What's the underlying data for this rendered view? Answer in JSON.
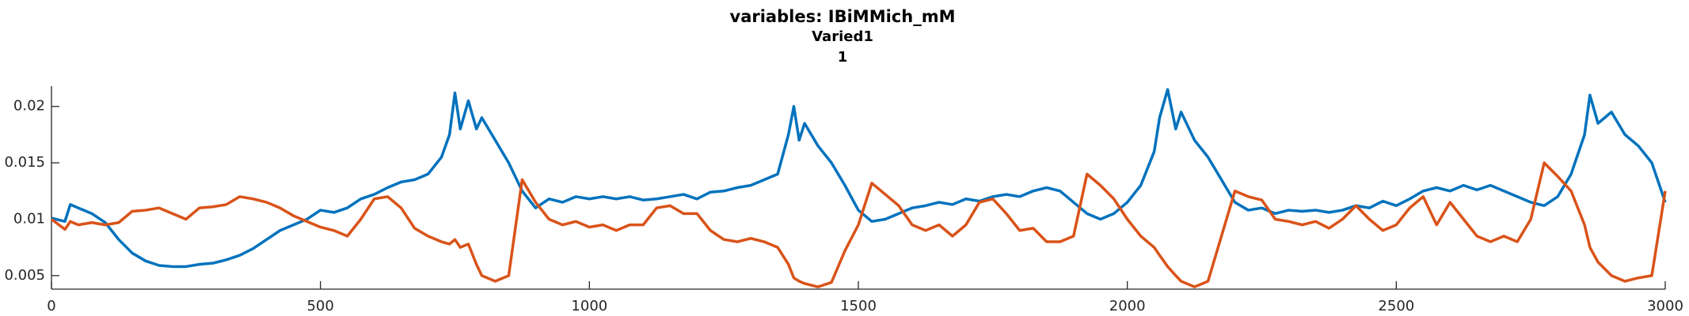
{
  "chart_data": {
    "type": "line",
    "title": "variables: IBiMMich_mM",
    "subtitle": [
      "Varied1",
      "1"
    ],
    "x": [
      0,
      25,
      35,
      50,
      75,
      100,
      125,
      150,
      175,
      200,
      225,
      250,
      275,
      300,
      325,
      350,
      375,
      400,
      425,
      450,
      475,
      500,
      525,
      550,
      575,
      600,
      625,
      650,
      675,
      700,
      725,
      740,
      750,
      760,
      775,
      790,
      800,
      825,
      850,
      875,
      900,
      925,
      950,
      975,
      1000,
      1025,
      1050,
      1075,
      1100,
      1125,
      1150,
      1175,
      1200,
      1225,
      1250,
      1275,
      1300,
      1325,
      1350,
      1370,
      1380,
      1390,
      1400,
      1425,
      1450,
      1475,
      1500,
      1525,
      1550,
      1575,
      1600,
      1625,
      1650,
      1675,
      1700,
      1725,
      1750,
      1775,
      1800,
      1825,
      1850,
      1875,
      1900,
      1925,
      1950,
      1975,
      2000,
      2025,
      2050,
      2060,
      2075,
      2090,
      2100,
      2125,
      2150,
      2175,
      2200,
      2225,
      2250,
      2275,
      2300,
      2325,
      2350,
      2375,
      2400,
      2425,
      2450,
      2475,
      2500,
      2525,
      2550,
      2575,
      2600,
      2625,
      2650,
      2675,
      2700,
      2725,
      2750,
      2775,
      2800,
      2825,
      2850,
      2860,
      2875,
      2900,
      2925,
      2950,
      2975,
      3000
    ],
    "series": [
      {
        "color": "#0072BD",
        "values": [
          0.0101,
          0.0098,
          0.0113,
          0.011,
          0.0105,
          0.0097,
          0.0082,
          0.007,
          0.0063,
          0.0059,
          0.0058,
          0.0058,
          0.006,
          0.0061,
          0.0064,
          0.0068,
          0.0074,
          0.0082,
          0.009,
          0.0095,
          0.01,
          0.0108,
          0.0106,
          0.011,
          0.0118,
          0.0122,
          0.0128,
          0.0133,
          0.0135,
          0.014,
          0.0155,
          0.0175,
          0.0212,
          0.018,
          0.0205,
          0.018,
          0.019,
          0.017,
          0.015,
          0.0125,
          0.011,
          0.0118,
          0.0115,
          0.012,
          0.0118,
          0.012,
          0.0118,
          0.012,
          0.0117,
          0.0118,
          0.012,
          0.0122,
          0.0118,
          0.0124,
          0.0125,
          0.0128,
          0.013,
          0.0135,
          0.014,
          0.0175,
          0.02,
          0.017,
          0.0185,
          0.0165,
          0.015,
          0.013,
          0.0108,
          0.0098,
          0.01,
          0.0105,
          0.011,
          0.0112,
          0.0115,
          0.0113,
          0.0118,
          0.0116,
          0.012,
          0.0122,
          0.012,
          0.0125,
          0.0128,
          0.0125,
          0.0115,
          0.0105,
          0.01,
          0.0105,
          0.0115,
          0.013,
          0.016,
          0.019,
          0.0215,
          0.018,
          0.0195,
          0.017,
          0.0155,
          0.0135,
          0.0115,
          0.0108,
          0.011,
          0.0105,
          0.0108,
          0.0107,
          0.0108,
          0.0106,
          0.0108,
          0.0112,
          0.011,
          0.0116,
          0.0112,
          0.0118,
          0.0125,
          0.0128,
          0.0125,
          0.013,
          0.0126,
          0.013,
          0.0125,
          0.012,
          0.0115,
          0.0112,
          0.012,
          0.014,
          0.0175,
          0.021,
          0.0185,
          0.0195,
          0.0175,
          0.0165,
          0.015,
          0.0115
        ]
      },
      {
        "color": "#D95319",
        "values": [
          0.01,
          0.0091,
          0.0098,
          0.0095,
          0.0097,
          0.0095,
          0.0097,
          0.0107,
          0.0108,
          0.011,
          0.0105,
          0.01,
          0.011,
          0.0111,
          0.0113,
          0.012,
          0.0118,
          0.0115,
          0.011,
          0.0103,
          0.0098,
          0.0093,
          0.009,
          0.0085,
          0.01,
          0.0118,
          0.012,
          0.011,
          0.0092,
          0.0085,
          0.008,
          0.0078,
          0.0082,
          0.0075,
          0.0078,
          0.006,
          0.005,
          0.0045,
          0.005,
          0.0135,
          0.0115,
          0.01,
          0.0095,
          0.0098,
          0.0093,
          0.0095,
          0.009,
          0.0095,
          0.0095,
          0.011,
          0.0112,
          0.0105,
          0.0105,
          0.009,
          0.0082,
          0.008,
          0.0083,
          0.008,
          0.0075,
          0.006,
          0.0048,
          0.0045,
          0.0043,
          0.004,
          0.0044,
          0.0072,
          0.0095,
          0.0132,
          0.0122,
          0.0112,
          0.0095,
          0.009,
          0.0095,
          0.0085,
          0.0095,
          0.0115,
          0.0118,
          0.0105,
          0.009,
          0.0092,
          0.008,
          0.008,
          0.0085,
          0.014,
          0.013,
          0.0118,
          0.01,
          0.0085,
          0.0075,
          0.0068,
          0.0058,
          0.005,
          0.0045,
          0.004,
          0.0045,
          0.0085,
          0.0125,
          0.012,
          0.0117,
          0.01,
          0.0098,
          0.0095,
          0.0098,
          0.0092,
          0.01,
          0.0112,
          0.01,
          0.009,
          0.0095,
          0.011,
          0.012,
          0.0095,
          0.0115,
          0.01,
          0.0085,
          0.008,
          0.0085,
          0.008,
          0.01,
          0.015,
          0.0138,
          0.0125,
          0.0095,
          0.0075,
          0.0062,
          0.005,
          0.0045,
          0.0048,
          0.005,
          0.0125
        ]
      }
    ],
    "xlim": [
      0,
      3000
    ],
    "xticks": [
      0,
      500,
      1000,
      1500,
      2000,
      2500,
      3000
    ],
    "ylim": [
      0.0038,
      0.0218
    ],
    "yticks": [
      0.005,
      0.01,
      0.015,
      0.02
    ]
  }
}
